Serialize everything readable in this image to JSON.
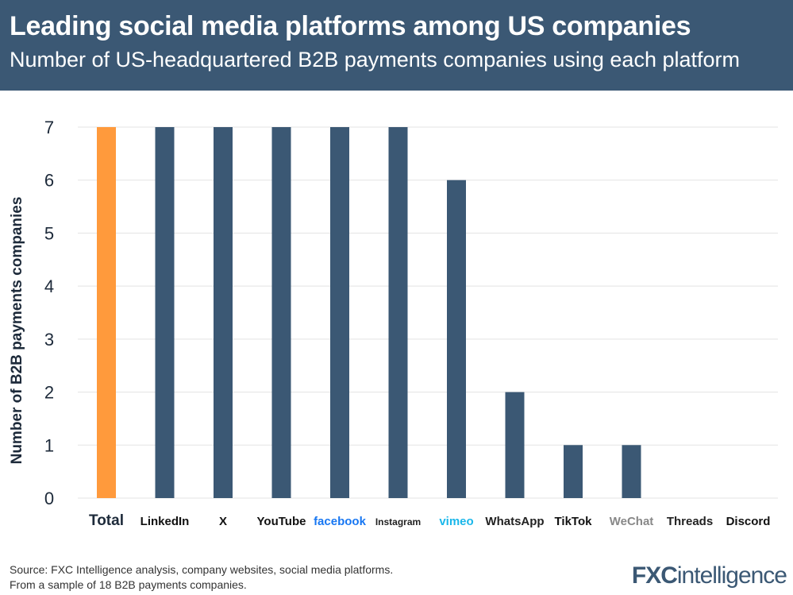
{
  "header": {
    "title": "Leading social media platforms among US companies",
    "subtitle": "Number of US-headquartered B2B payments companies using each platform"
  },
  "chart_data": {
    "type": "bar",
    "categories": [
      "Total",
      "LinkedIn",
      "X",
      "YouTube",
      "facebook",
      "Instagram",
      "vimeo",
      "WhatsApp",
      "TikTok",
      "WeChat",
      "Threads",
      "Discord"
    ],
    "values": [
      7,
      7,
      7,
      7,
      7,
      7,
      6,
      2,
      1,
      1,
      0,
      0
    ],
    "ylabel": "Number of B2B payments companies",
    "ylim": [
      0,
      7
    ],
    "yticks": [
      0,
      1,
      2,
      3,
      4,
      5,
      6,
      7
    ],
    "grid": true,
    "colors": {
      "highlight": "#ff9a3c",
      "bar": "#3b5874",
      "grid": "#e3e3e3"
    },
    "category_colors": [
      "#1d2a3a",
      "#111111",
      "#111111",
      "#111111",
      "#1877f2",
      "#222222",
      "#1ab7ea",
      "#222222",
      "#111111",
      "#888888",
      "#222222",
      "#111111"
    ]
  },
  "footer": {
    "source": "Source: FXC Intelligence analysis, company websites, social media platforms.",
    "note": "From a sample of 18 B2B payments companies.",
    "brand_a": "FXC",
    "brand_b": "intelligence"
  }
}
